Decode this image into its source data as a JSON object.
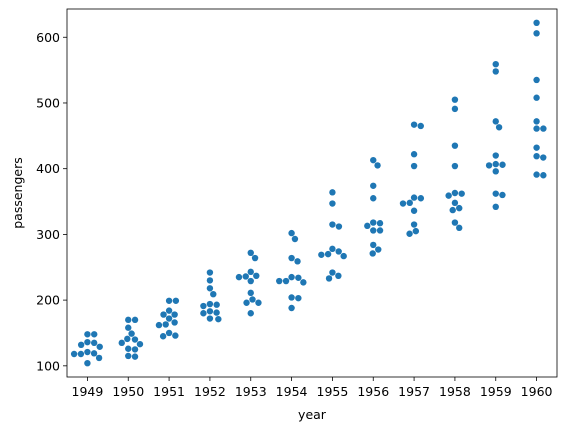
{
  "chart_data": {
    "type": "scatter",
    "subtype": "swarm",
    "title": "",
    "xlabel": "year",
    "ylabel": "passengers",
    "ylim": [
      83,
      643
    ],
    "yticks": [
      100,
      200,
      300,
      400,
      500,
      600
    ],
    "grid": false,
    "legend": "none",
    "marker_color": "#1f77b4",
    "categories": [
      "1949",
      "1950",
      "1951",
      "1952",
      "1953",
      "1954",
      "1955",
      "1956",
      "1957",
      "1958",
      "1959",
      "1960"
    ],
    "series": [
      {
        "values": [
          [
            112,
            118,
            132,
            129,
            121,
            135,
            148,
            148,
            136,
            119,
            104,
            118
          ],
          [
            115,
            126,
            141,
            135,
            125,
            149,
            170,
            170,
            158,
            133,
            114,
            140
          ],
          [
            145,
            150,
            178,
            163,
            172,
            178,
            199,
            199,
            184,
            162,
            146,
            166
          ],
          [
            171,
            180,
            193,
            181,
            183,
            218,
            230,
            242,
            209,
            191,
            172,
            194
          ],
          [
            196,
            196,
            236,
            235,
            229,
            243,
            264,
            272,
            237,
            211,
            180,
            201
          ],
          [
            204,
            188,
            235,
            227,
            234,
            264,
            302,
            293,
            259,
            229,
            203,
            229
          ],
          [
            242,
            233,
            267,
            269,
            270,
            315,
            364,
            347,
            312,
            274,
            237,
            278
          ],
          [
            284,
            277,
            317,
            313,
            318,
            374,
            413,
            405,
            355,
            306,
            271,
            306
          ],
          [
            315,
            301,
            356,
            348,
            355,
            422,
            465,
            467,
            404,
            347,
            305,
            336
          ],
          [
            340,
            318,
            362,
            348,
            363,
            435,
            491,
            505,
            404,
            359,
            310,
            337
          ],
          [
            360,
            342,
            406,
            396,
            420,
            472,
            548,
            559,
            463,
            407,
            362,
            405
          ],
          [
            417,
            391,
            419,
            461,
            472,
            535,
            622,
            606,
            508,
            461,
            390,
            432
          ]
        ]
      }
    ]
  }
}
